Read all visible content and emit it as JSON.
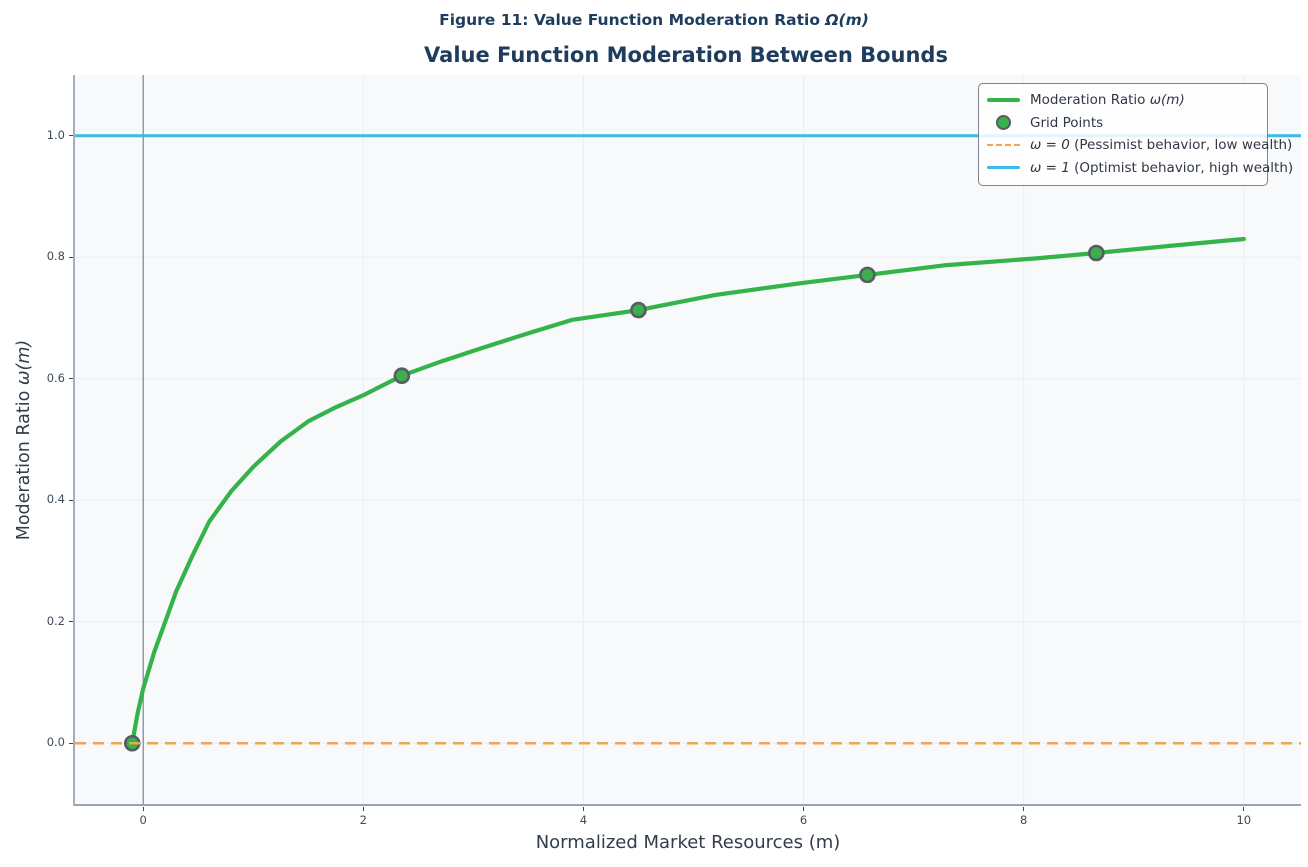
{
  "figure": {
    "suptitle_pre": "Figure 11: Value Function Moderation Ratio ",
    "suptitle_math": "Ω(m)",
    "title": "Value Function Moderation Between Bounds"
  },
  "axes": {
    "xlabel": "Normalized Market Resources (m)",
    "ylabel_pre": "Moderation Ratio ",
    "ylabel_math": "ω(m)"
  },
  "legend": {
    "items": [
      {
        "pre": "Moderation Ratio ",
        "math": "ω(m)",
        "post": ""
      },
      {
        "pre": "Grid Points",
        "math": "",
        "post": ""
      },
      {
        "pre": "",
        "math": "ω = 0",
        "post": " (Pessimist behavior, low wealth)"
      },
      {
        "pre": "",
        "math": "ω = 1",
        "post": " (Optimist behavior, high wealth)"
      }
    ]
  },
  "colors": {
    "curve_green": "#34b34a",
    "marker_fill": "#3aaf4c",
    "marker_edge": "#565c64",
    "pessimist_orange": "#efa551",
    "optimist_blue": "#3dbae9",
    "title_navy": "#1e3c5e",
    "grid": "#e9edf3",
    "zero_vline": "#878e99",
    "axes_bg": "#f8f9fb"
  },
  "chart_data": {
    "type": "line",
    "title": "Value Function Moderation Between Bounds",
    "suptitle": "Figure 11: Value Function Moderation Ratio Ω(m)",
    "xlabel": "Normalized Market Resources (m)",
    "ylabel": "Moderation Ratio ω(m)",
    "xlim": [
      -0.62,
      10.52
    ],
    "ylim": [
      -0.1,
      1.1
    ],
    "x_ticks": [
      0,
      2,
      4,
      6,
      8,
      10
    ],
    "x_tick_labels": [
      "0",
      "2",
      "4",
      "6",
      "8",
      "10"
    ],
    "y_ticks": [
      0.0,
      0.2,
      0.4,
      0.6,
      0.8,
      1.0
    ],
    "y_tick_labels": [
      "0.0",
      "0.2",
      "0.4",
      "0.6",
      "0.8",
      "1.0"
    ],
    "grid": true,
    "legend_position": "upper right",
    "vline_x": 0,
    "series": [
      {
        "name": "Moderation Ratio ω(m)",
        "kind": "line",
        "color": "#34b34a",
        "width": 4.2,
        "x": [
          -0.1,
          -0.05,
          0.0,
          0.1,
          0.2,
          0.3,
          0.45,
          0.6,
          0.8,
          1.0,
          1.25,
          1.5,
          1.75,
          2.0,
          2.35,
          2.7,
          3.1,
          3.5,
          3.9,
          4.5,
          5.2,
          6.0,
          6.58,
          7.3,
          8.1,
          8.66,
          9.4,
          10.0
        ],
        "y": [
          0.0,
          0.05,
          0.09,
          0.15,
          0.2,
          0.25,
          0.31,
          0.365,
          0.415,
          0.455,
          0.497,
          0.53,
          0.553,
          0.573,
          0.605,
          0.628,
          0.652,
          0.675,
          0.697,
          0.713,
          0.738,
          0.758,
          0.771,
          0.787,
          0.798,
          0.807,
          0.82,
          0.83
        ]
      },
      {
        "name": "Grid Points",
        "kind": "scatter",
        "color": "#3aaf4c",
        "edge": "#565c64",
        "radius": 7,
        "x": [
          -0.1,
          2.35,
          4.5,
          6.58,
          8.66
        ],
        "y": [
          0.0,
          0.605,
          0.713,
          0.771,
          0.807
        ]
      },
      {
        "name": "ω = 0 (Pessimist behavior, low wealth)",
        "kind": "hline",
        "y": 0.0,
        "color": "#efa551",
        "width": 2.4,
        "dash": "11 7"
      },
      {
        "name": "ω = 1 (Optimist behavior, high wealth)",
        "kind": "hline",
        "y": 1.0,
        "color": "#3dbae9",
        "width": 3,
        "dash": ""
      }
    ]
  }
}
